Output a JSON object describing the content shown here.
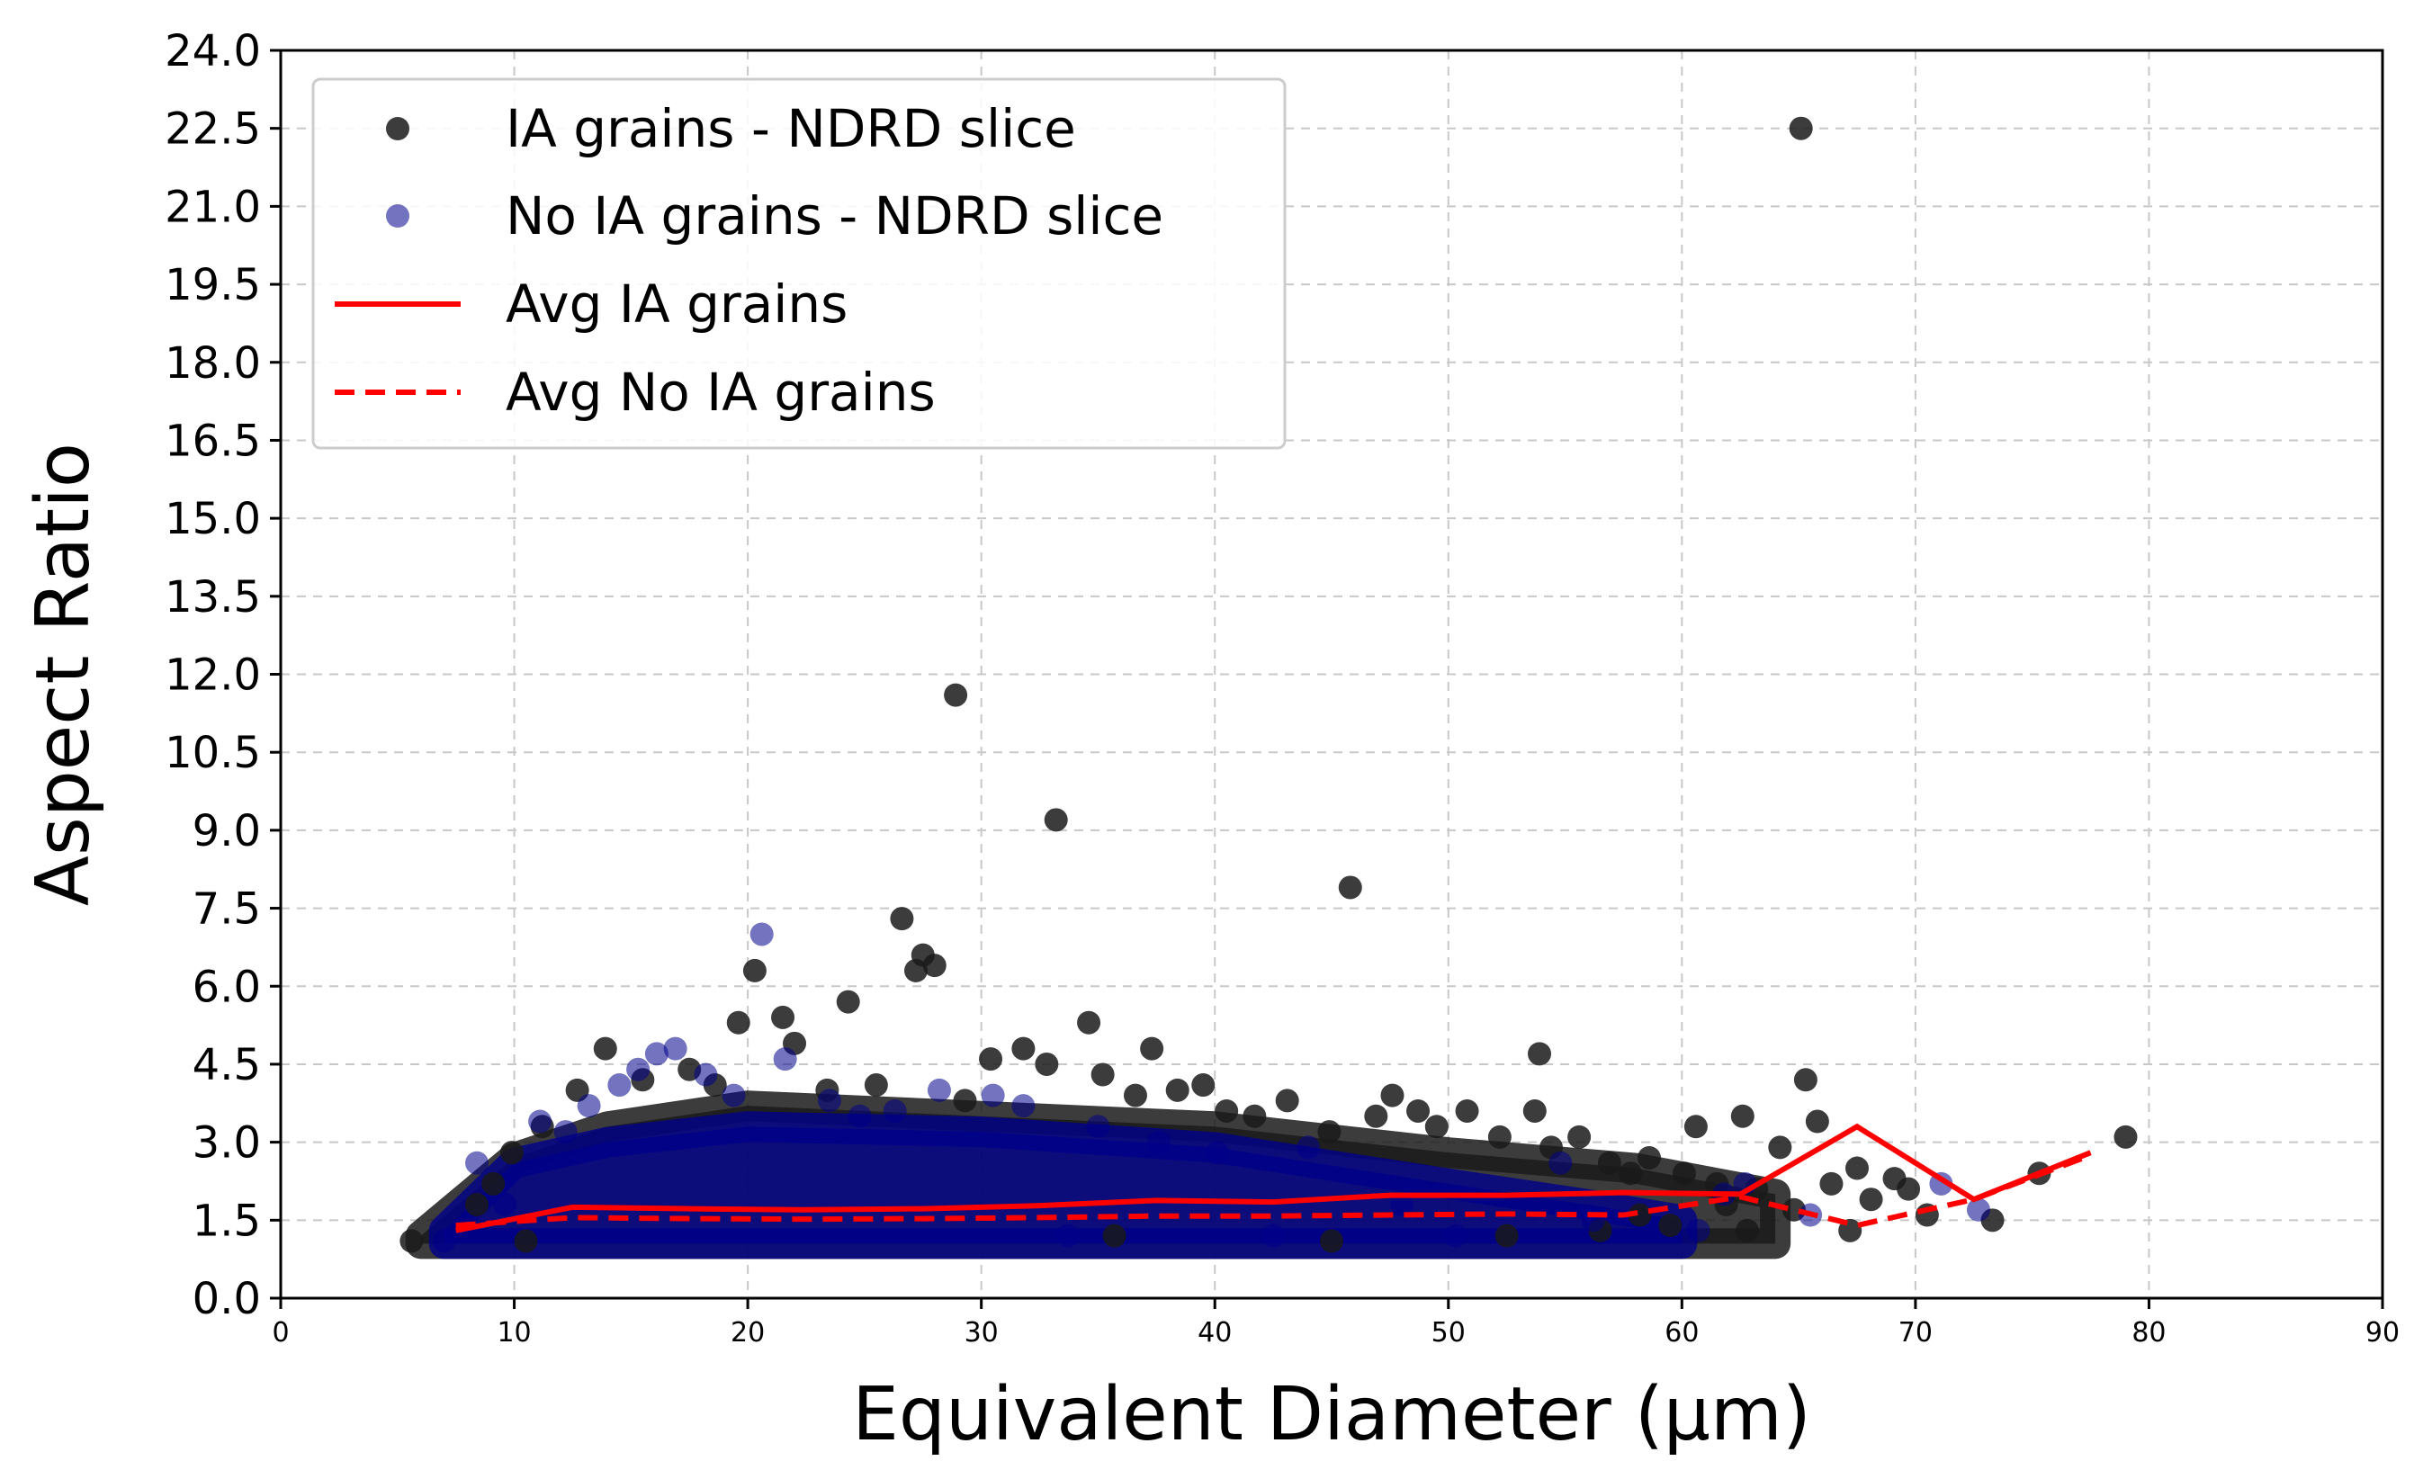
{
  "chart_data": {
    "type": "scatter",
    "title": "",
    "xlabel": "Equivalent Diameter (µm)",
    "ylabel": "Aspect Ratio",
    "xlim": [
      0,
      90
    ],
    "ylim": [
      0,
      24
    ],
    "x_ticks": [
      0,
      10,
      20,
      30,
      40,
      50,
      60,
      70,
      80,
      90
    ],
    "x_tick_labels": [
      "0",
      "10",
      "20",
      "30",
      "40",
      "50",
      "60",
      "70",
      "80",
      "90"
    ],
    "y_ticks": [
      0,
      1.5,
      3,
      4.5,
      6,
      7.5,
      9,
      10.5,
      12,
      13.5,
      15,
      16.5,
      18,
      19.5,
      21,
      22.5,
      24
    ],
    "y_tick_labels": [
      "0.0",
      "1.5",
      "3.0",
      "4.5",
      "6.0",
      "7.5",
      "9.0",
      "10.5",
      "12.0",
      "13.5",
      "15.0",
      "16.5",
      "18.0",
      "19.5",
      "21.0",
      "22.5",
      "24.0"
    ],
    "grid": true,
    "legend_position": "upper-left",
    "colors": {
      "ia_points": "#1a1a1a",
      "no_ia_points": "#00008b",
      "average_lines": "#ff0000"
    },
    "series": [
      {
        "name": "IA grains - NDRD slice",
        "kind": "scatter",
        "points": [
          [
            65.1,
            22.5
          ],
          [
            28.9,
            11.6
          ],
          [
            33.2,
            9.2
          ],
          [
            45.8,
            7.9
          ],
          [
            26.6,
            7.3
          ],
          [
            27.5,
            6.6
          ],
          [
            27.2,
            6.3
          ],
          [
            28.0,
            6.4
          ],
          [
            20.3,
            6.3
          ],
          [
            24.3,
            5.7
          ],
          [
            19.6,
            5.3
          ],
          [
            21.5,
            5.4
          ],
          [
            34.6,
            5.3
          ],
          [
            22.0,
            4.9
          ],
          [
            31.8,
            4.8
          ],
          [
            13.9,
            4.8
          ],
          [
            30.4,
            4.6
          ],
          [
            32.8,
            4.5
          ],
          [
            37.3,
            4.8
          ],
          [
            53.9,
            4.7
          ],
          [
            65.3,
            4.2
          ],
          [
            12.7,
            4.0
          ],
          [
            35.2,
            4.3
          ],
          [
            39.5,
            4.1
          ],
          [
            47.6,
            3.9
          ],
          [
            65.8,
            3.4
          ],
          [
            53.7,
            3.6
          ],
          [
            60.6,
            3.3
          ],
          [
            79.0,
            3.1
          ],
          [
            62.6,
            3.5
          ],
          [
            75.3,
            2.4
          ],
          [
            73.3,
            1.5
          ],
          [
            69.1,
            2.3
          ],
          [
            69.7,
            2.1
          ],
          [
            67.5,
            2.5
          ],
          [
            64.2,
            2.9
          ],
          [
            62.8,
            1.3
          ],
          [
            59.5,
            1.4
          ],
          [
            50.8,
            3.6
          ],
          [
            43.1,
            3.8
          ],
          [
            41.7,
            3.5
          ],
          [
            44.9,
            3.2
          ],
          [
            48.7,
            3.6
          ],
          [
            52.2,
            3.1
          ],
          [
            55.6,
            3.1
          ],
          [
            57.8,
            2.4
          ],
          [
            61.5,
            2.2
          ],
          [
            63.2,
            2.1
          ],
          [
            64.8,
            1.7
          ],
          [
            66.4,
            2.2
          ],
          [
            68.1,
            1.9
          ],
          [
            11.2,
            3.3
          ],
          [
            9.9,
            2.8
          ],
          [
            10.5,
            1.1
          ],
          [
            5.6,
            1.1
          ],
          [
            8.4,
            1.8
          ],
          [
            9.1,
            2.2
          ],
          [
            15.5,
            4.2
          ],
          [
            17.5,
            4.4
          ],
          [
            18.6,
            4.1
          ],
          [
            23.4,
            4.0
          ],
          [
            25.5,
            4.1
          ],
          [
            29.3,
            3.8
          ],
          [
            36.6,
            3.9
          ],
          [
            38.4,
            4.0
          ],
          [
            40.5,
            3.6
          ],
          [
            46.9,
            3.5
          ],
          [
            49.5,
            3.3
          ],
          [
            54.4,
            2.9
          ],
          [
            56.9,
            2.6
          ],
          [
            58.6,
            2.7
          ],
          [
            60.1,
            2.4
          ],
          [
            70.5,
            1.6
          ],
          [
            67.2,
            1.3
          ],
          [
            61.9,
            1.8
          ],
          [
            58.2,
            1.6
          ],
          [
            45.0,
            1.1
          ],
          [
            52.5,
            1.2
          ],
          [
            56.5,
            1.3
          ],
          [
            35.7,
            1.2
          ]
        ]
      },
      {
        "name": "No IA grains - NDRD slice",
        "kind": "scatter",
        "points": [
          [
            20.6,
            7.0
          ],
          [
            16.9,
            4.8
          ],
          [
            16.1,
            4.7
          ],
          [
            15.3,
            4.4
          ],
          [
            14.5,
            4.1
          ],
          [
            11.1,
            3.4
          ],
          [
            8.4,
            2.6
          ],
          [
            21.6,
            4.6
          ],
          [
            18.2,
            4.3
          ],
          [
            13.2,
            3.7
          ],
          [
            12.2,
            3.2
          ],
          [
            23.5,
            3.8
          ],
          [
            26.3,
            3.6
          ],
          [
            31.8,
            3.7
          ],
          [
            35.0,
            3.3
          ],
          [
            71.1,
            2.2
          ],
          [
            72.7,
            1.7
          ],
          [
            65.5,
            1.6
          ],
          [
            60.7,
            1.3
          ],
          [
            61.8,
            2.0
          ],
          [
            62.7,
            2.2
          ],
          [
            50.3,
            1.2
          ],
          [
            54.8,
            2.6
          ],
          [
            48.0,
            1.8
          ],
          [
            30.5,
            3.9
          ],
          [
            28.2,
            4.0
          ],
          [
            24.8,
            3.5
          ],
          [
            19.4,
            3.9
          ],
          [
            44.0,
            2.9
          ],
          [
            40.1,
            2.8
          ],
          [
            37.6,
            3.0
          ],
          [
            7.0,
            1.1
          ],
          [
            9.6,
            1.8
          ],
          [
            33.7,
            1.2
          ],
          [
            42.5,
            1.2
          ],
          [
            56.2,
            1.5
          ]
        ]
      },
      {
        "name": "Avg IA grains",
        "kind": "line",
        "style": "solid",
        "points": [
          [
            7.5,
            1.3
          ],
          [
            12.5,
            1.75
          ],
          [
            17.5,
            1.72
          ],
          [
            22.5,
            1.7
          ],
          [
            27.5,
            1.72
          ],
          [
            32.5,
            1.78
          ],
          [
            37.5,
            1.88
          ],
          [
            42.5,
            1.85
          ],
          [
            47.5,
            1.98
          ],
          [
            52.5,
            1.98
          ],
          [
            57.5,
            2.03
          ],
          [
            62.5,
            2.0
          ],
          [
            67.5,
            3.3
          ],
          [
            72.5,
            1.9
          ],
          [
            77.5,
            2.8
          ]
        ]
      },
      {
        "name": "Avg No IA grains",
        "kind": "line",
        "style": "dashed",
        "points": [
          [
            7.5,
            1.4
          ],
          [
            12.5,
            1.55
          ],
          [
            17.5,
            1.53
          ],
          [
            22.5,
            1.52
          ],
          [
            27.5,
            1.53
          ],
          [
            32.5,
            1.55
          ],
          [
            37.5,
            1.58
          ],
          [
            42.5,
            1.58
          ],
          [
            47.5,
            1.6
          ],
          [
            52.5,
            1.62
          ],
          [
            57.5,
            1.6
          ],
          [
            62.5,
            1.95
          ],
          [
            67.5,
            1.4
          ],
          [
            72.5,
            1.9
          ],
          [
            77.5,
            2.75
          ]
        ]
      }
    ],
    "dense_bands": [
      {
        "series": "IA grains - NDRD slice",
        "x_range": [
          6.0,
          64.0
        ],
        "y_low": 1.05,
        "y_high_profile": [
          [
            6.0,
            1.2
          ],
          [
            10.0,
            2.7
          ],
          [
            14.0,
            3.3
          ],
          [
            20.0,
            3.7
          ],
          [
            30.0,
            3.5
          ],
          [
            40.0,
            3.3
          ],
          [
            50.0,
            2.8
          ],
          [
            58.0,
            2.5
          ],
          [
            64.0,
            2.0
          ]
        ]
      },
      {
        "series": "No IA grains - NDRD slice",
        "x_range": [
          7.0,
          60.0
        ],
        "y_low": 1.05,
        "y_high_profile": [
          [
            7.0,
            1.3
          ],
          [
            10.0,
            2.6
          ],
          [
            14.0,
            3.0
          ],
          [
            20.0,
            3.3
          ],
          [
            30.0,
            3.2
          ],
          [
            40.0,
            2.9
          ],
          [
            50.0,
            2.2
          ],
          [
            56.0,
            1.8
          ],
          [
            60.0,
            1.5
          ]
        ]
      }
    ]
  }
}
